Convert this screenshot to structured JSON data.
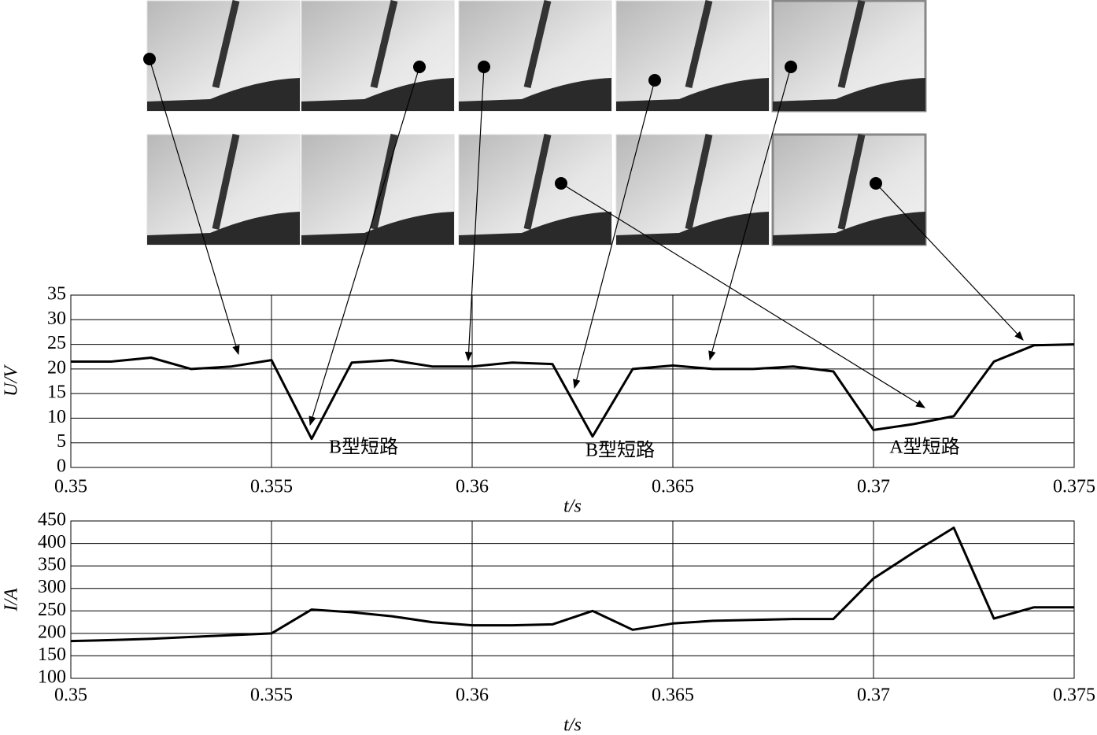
{
  "chart_data": [
    {
      "type": "line",
      "ylabel": "U/V",
      "xlabel": "t/s",
      "x": [
        0.35,
        0.351,
        0.352,
        0.353,
        0.354,
        0.355,
        0.356,
        0.357,
        0.358,
        0.359,
        0.36,
        0.361,
        0.362,
        0.363,
        0.364,
        0.365,
        0.366,
        0.367,
        0.368,
        0.369,
        0.37,
        0.371,
        0.372,
        0.373,
        0.374,
        0.375
      ],
      "series": [
        {
          "name": "U",
          "color": "#000000",
          "values": [
            21.5,
            21.5,
            22.3,
            20,
            20.5,
            21.8,
            5.8,
            21.3,
            21.8,
            20.5,
            20.5,
            21.3,
            21,
            6.3,
            20,
            20.7,
            20,
            20,
            20.5,
            19.5,
            7.6,
            8.8,
            10.4,
            21.5,
            24.8,
            25
          ]
        }
      ],
      "xlim": [
        0.35,
        0.375
      ],
      "xticks": [
        0.35,
        0.355,
        0.36,
        0.365,
        0.37,
        0.375
      ],
      "ylim": [
        0,
        35
      ],
      "yticks": [
        0,
        5,
        10,
        15,
        20,
        25,
        30,
        35
      ],
      "grid": true,
      "annotations": [
        "B型短路",
        "B型短路",
        "A型短路"
      ]
    },
    {
      "type": "line",
      "ylabel": "I/A",
      "xlabel": "t/s",
      "x": [
        0.35,
        0.351,
        0.352,
        0.353,
        0.354,
        0.355,
        0.356,
        0.357,
        0.358,
        0.359,
        0.36,
        0.361,
        0.362,
        0.363,
        0.364,
        0.365,
        0.366,
        0.367,
        0.368,
        0.369,
        0.37,
        0.371,
        0.372,
        0.373,
        0.374,
        0.375
      ],
      "series": [
        {
          "name": "I",
          "color": "#000000",
          "values": [
            183,
            185,
            188,
            192,
            196,
            200,
            253,
            247,
            238,
            225,
            218,
            218,
            220,
            250,
            208,
            222,
            228,
            230,
            232,
            232,
            322,
            380,
            435,
            233,
            258,
            258
          ]
        }
      ],
      "xlim": [
        0.35,
        0.375
      ],
      "xticks": [
        0.35,
        0.355,
        0.36,
        0.365,
        0.37,
        0.375
      ],
      "ylim": [
        100,
        450
      ],
      "yticks": [
        100,
        150,
        200,
        250,
        300,
        350,
        400,
        450
      ],
      "grid": true
    }
  ]
}
